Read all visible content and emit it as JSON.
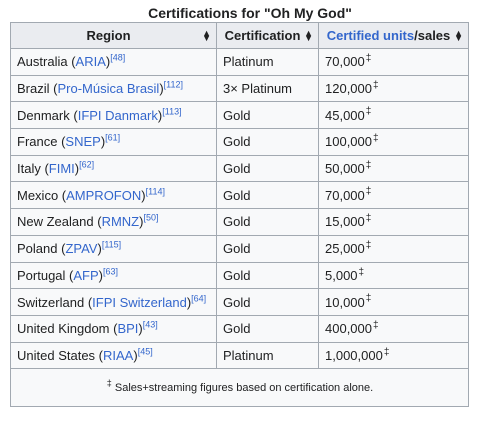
{
  "caption": "Certifications for \"Oh My God\"",
  "headers": {
    "region": "Region",
    "certification": "Certification",
    "units_link": "Certified units",
    "units_suffix": "/sales"
  },
  "rows": [
    {
      "region": "Australia",
      "org": "ARIA",
      "ref": "[48]",
      "certification": "Platinum",
      "units": "70,000",
      "mark": "‡"
    },
    {
      "region": "Brazil",
      "org": "Pro-Música Brasil",
      "ref": "[112]",
      "certification": "3× Platinum",
      "units": "120,000",
      "mark": "‡"
    },
    {
      "region": "Denmark",
      "org": "IFPI Danmark",
      "ref": "[113]",
      "certification": "Gold",
      "units": "45,000",
      "mark": "‡"
    },
    {
      "region": "France",
      "org": "SNEP",
      "ref": "[61]",
      "certification": "Gold",
      "units": "100,000",
      "mark": "‡"
    },
    {
      "region": "Italy",
      "org": "FIMI",
      "ref": "[62]",
      "certification": "Gold",
      "units": "50,000",
      "mark": "‡"
    },
    {
      "region": "Mexico",
      "org": "AMPROFON",
      "ref": "[114]",
      "certification": "Gold",
      "units": "70,000",
      "mark": "‡"
    },
    {
      "region": "New Zealand",
      "org": "RMNZ",
      "ref": "[50]",
      "certification": "Gold",
      "units": "15,000",
      "mark": "‡"
    },
    {
      "region": "Poland",
      "org": "ZPAV",
      "ref": "[115]",
      "certification": "Gold",
      "units": "25,000",
      "mark": "‡"
    },
    {
      "region": "Portugal",
      "org": "AFP",
      "ref": "[63]",
      "certification": "Gold",
      "units": "5,000",
      "mark": "‡"
    },
    {
      "region": "Switzerland",
      "org": "IFPI Switzerland",
      "ref": "[64]",
      "certification": "Gold",
      "units": "10,000",
      "mark": "‡"
    },
    {
      "region": "United Kingdom",
      "org": "BPI",
      "ref": "[43]",
      "certification": "Gold",
      "units": "400,000",
      "mark": "‡"
    },
    {
      "region": "United States",
      "org": "RIAA",
      "ref": "[45]",
      "certification": "Platinum",
      "units": "1,000,000",
      "mark": "‡"
    }
  ],
  "footnote": {
    "mark": "‡",
    "text": "Sales+streaming figures based on certification alone."
  },
  "colors": {
    "link": "#3366cc",
    "header_bg": "#eaecf0",
    "cell_bg": "#f8f9fa",
    "border": "#a2a9b1"
  },
  "icons": {
    "sort": "sort-up-down-icon"
  }
}
